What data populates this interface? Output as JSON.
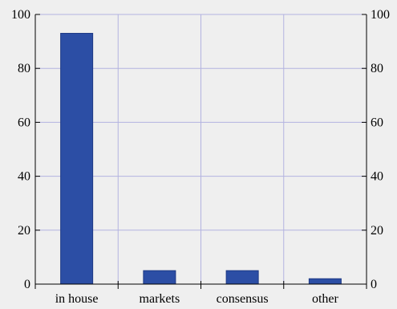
{
  "chart_data": {
    "type": "bar",
    "title": "",
    "xlabel": "",
    "ylabel": "",
    "categories": [
      "in house",
      "markets",
      "consensus",
      "other"
    ],
    "values": [
      93,
      5,
      5,
      2
    ],
    "ylim": [
      0,
      100
    ],
    "yticks": [
      0,
      20,
      40,
      60,
      80,
      100
    ],
    "ytick_labels": [
      "0",
      "20",
      "40",
      "60",
      "80",
      "100"
    ],
    "right_axis_mirrored": true,
    "grid": true,
    "legend": "none",
    "colors": {
      "bar_fill": "#2c4ea5",
      "bar_edge": "#1f3a85",
      "gridline": "#b3b3e0",
      "background": "#efefef",
      "axis": "#000000"
    }
  }
}
